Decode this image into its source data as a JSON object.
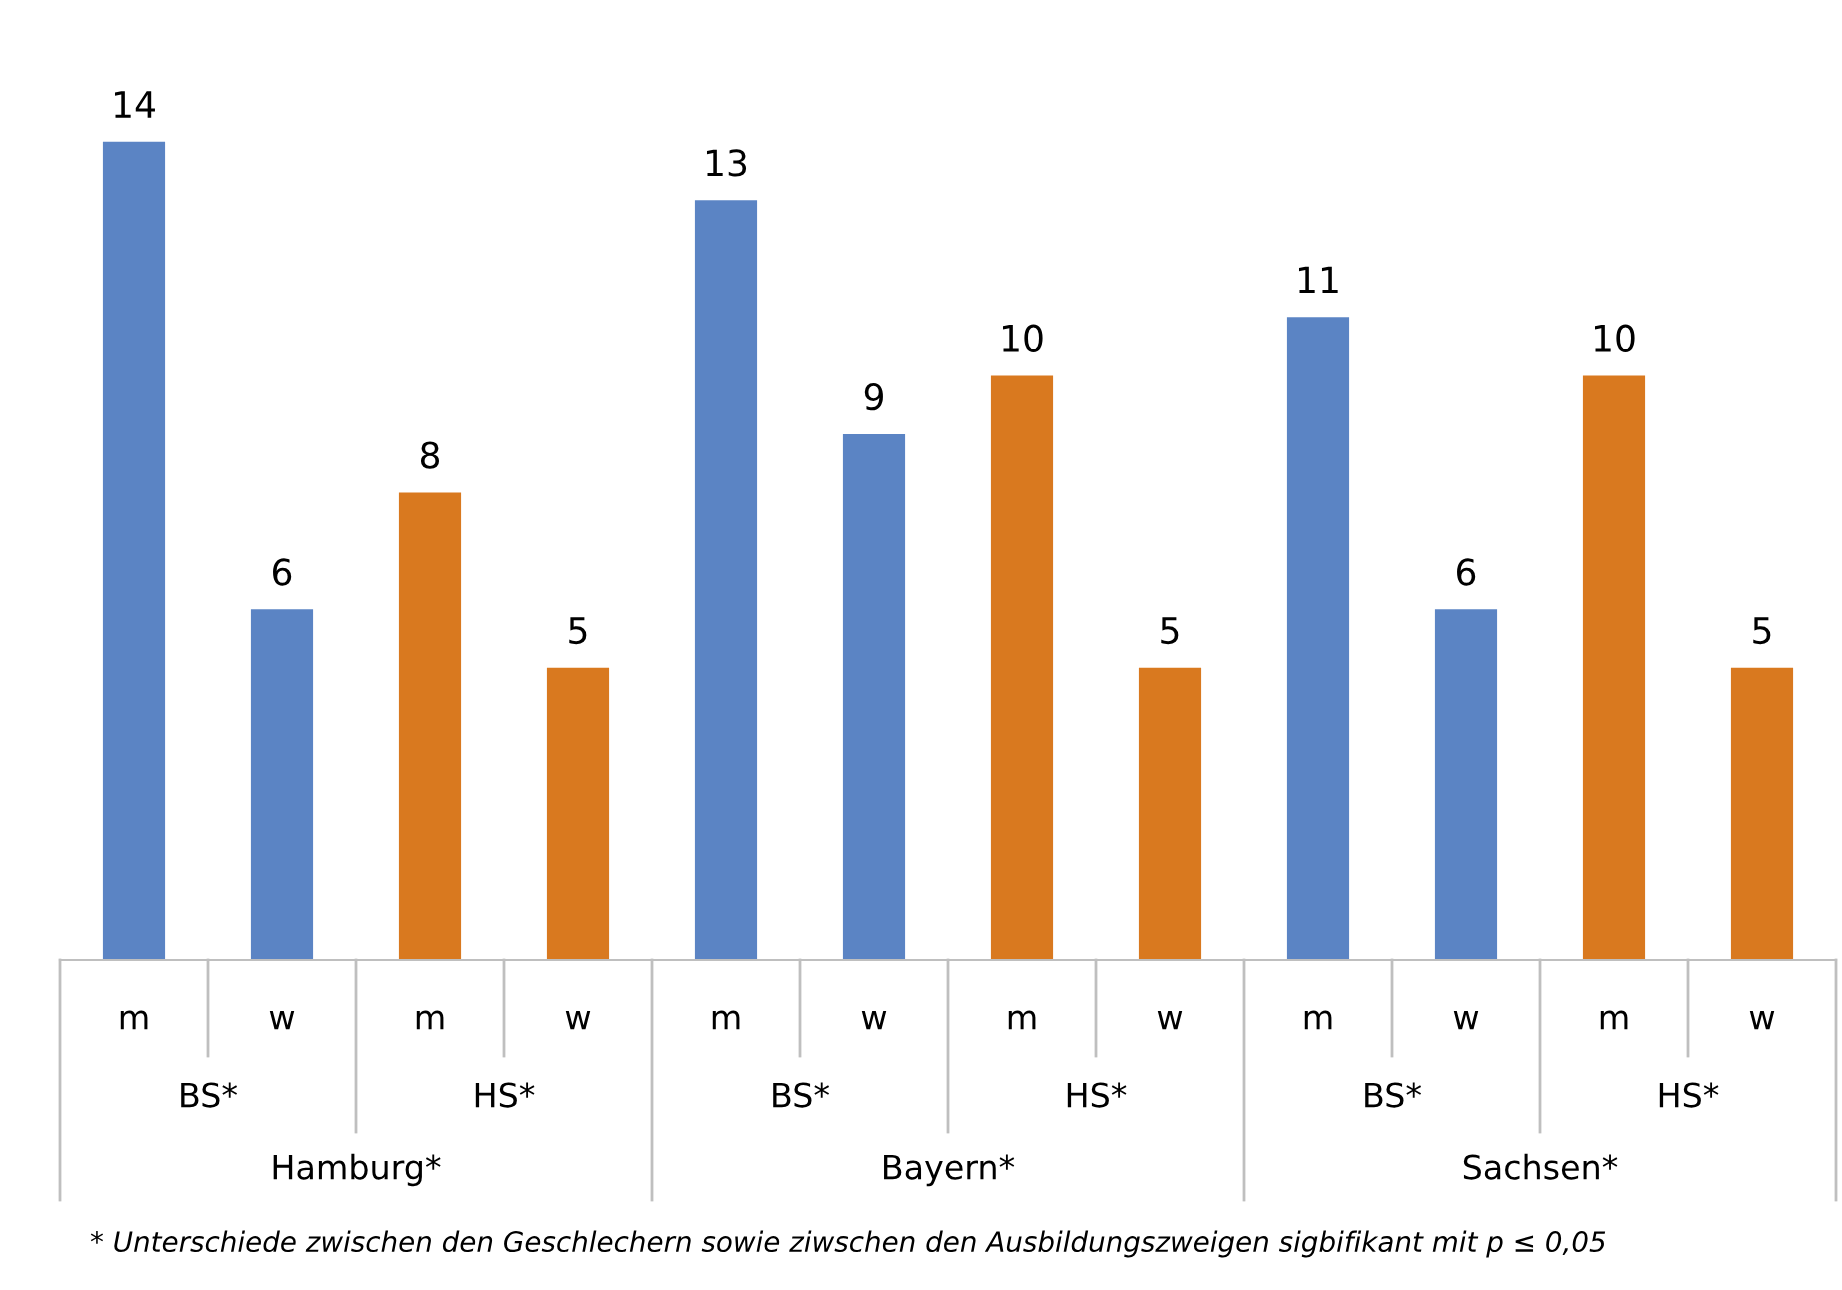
{
  "chart_data": {
    "type": "bar",
    "categories": [
      "m",
      "w",
      "m",
      "w",
      "m",
      "w",
      "m",
      "w",
      "m",
      "w",
      "m",
      "w"
    ],
    "values": [
      14,
      6,
      8,
      5,
      13,
      9,
      10,
      5,
      11,
      6,
      10,
      5
    ],
    "colors": [
      "#5b84c4",
      "#5b84c4",
      "#d9791f",
      "#d9791f",
      "#5b84c4",
      "#5b84c4",
      "#d9791f",
      "#d9791f",
      "#5b84c4",
      "#5b84c4",
      "#d9791f",
      "#d9791f"
    ],
    "data_labels": true,
    "annotations": [
      "BS*",
      "HS*",
      "BS*",
      "HS*",
      "BS*",
      "HS*",
      "Hamburg*",
      "Bayern*",
      "Sachsen*",
      "* Unterschiede zwischen den Geschlechern sowie ziwschen den Ausbildungszweigen sigbifikant mit p ≤ 0,05"
    ]
  }
}
